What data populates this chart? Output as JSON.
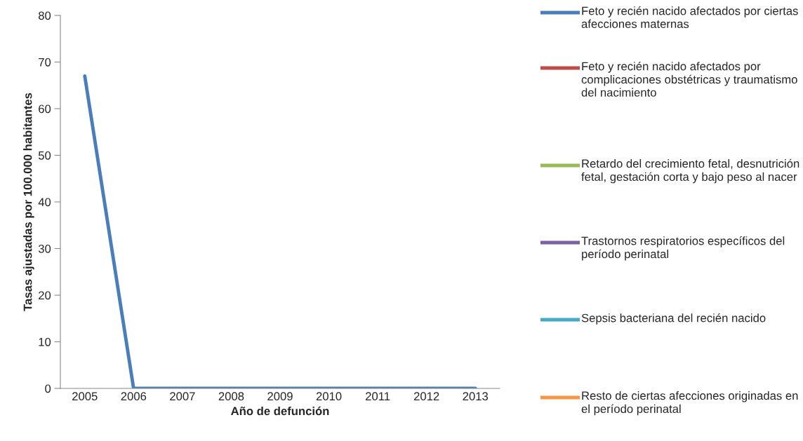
{
  "chart_data": {
    "type": "line",
    "xlabel": "Año de defunción",
    "ylabel": "Tasas ajustadas por 100.000 habitantes",
    "categories": [
      "2005",
      "2006",
      "2007",
      "2008",
      "2009",
      "2010",
      "2011",
      "2012",
      "2013"
    ],
    "series": [
      {
        "name": "Feto y recién nacido afectados por ciertas afecciones maternas",
        "color": "#4a7ebb",
        "values": [
          67,
          0,
          0,
          0,
          0,
          0,
          0,
          0,
          0
        ]
      },
      {
        "name": "Feto y recién nacido afectados por complicaciones obstétricas y traumatismo del nacimiento",
        "color": "#be4b48",
        "values": [
          null,
          null,
          null,
          null,
          null,
          null,
          null,
          null,
          null
        ]
      },
      {
        "name": "Retardo del crecimiento fetal, desnutrición fetal, gestación corta y bajo peso al nacer",
        "color": "#98b954",
        "values": [
          null,
          null,
          null,
          null,
          null,
          null,
          null,
          null,
          null
        ]
      },
      {
        "name": "Trastornos respiratorios específicos del período perinatal",
        "color": "#7d60a0",
        "values": [
          null,
          null,
          null,
          null,
          null,
          null,
          null,
          null,
          null
        ]
      },
      {
        "name": "Sepsis bacteriana del recién nacido",
        "color": "#46aac5",
        "values": [
          null,
          null,
          null,
          null,
          null,
          null,
          null,
          null,
          null
        ]
      },
      {
        "name": "Resto de ciertas afecciones originadas en el período perinatal",
        "color": "#f79646",
        "values": [
          null,
          null,
          null,
          null,
          null,
          null,
          null,
          null,
          null
        ]
      }
    ],
    "ylim": [
      0,
      80
    ],
    "yticks": [
      0,
      10,
      20,
      30,
      40,
      50,
      60,
      70,
      80
    ],
    "grid": false,
    "legend": "right",
    "marker": "none",
    "line_style": "solid"
  }
}
